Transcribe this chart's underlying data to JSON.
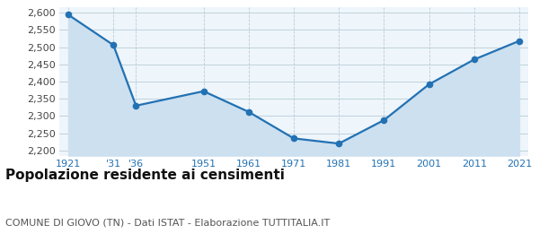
{
  "years": [
    1921,
    1931,
    1936,
    1951,
    1961,
    1971,
    1981,
    1991,
    2001,
    2011,
    2021
  ],
  "x_labels": [
    "1921",
    "'31",
    "'36",
    "1951",
    "1961",
    "1971",
    "1981",
    "1991",
    "2001",
    "2011",
    "2021"
  ],
  "values": [
    2594,
    2506,
    2330,
    2372,
    2312,
    2235,
    2220,
    2288,
    2392,
    2464,
    2518
  ],
  "ylim": [
    2185,
    2615
  ],
  "yticks": [
    2200,
    2250,
    2300,
    2350,
    2400,
    2450,
    2500,
    2550,
    2600
  ],
  "line_color": "#2271b3",
  "fill_color": "#cce0ef",
  "marker_size": 4.5,
  "line_width": 1.6,
  "background_color": "#eef5fb",
  "grid_color": "#b8cdd8",
  "title": "Popolazione residente ai censimenti",
  "subtitle": "COMUNE DI GIOVO (TN) - Dati ISTAT - Elaborazione TUTTITALIA.IT",
  "title_fontsize": 11,
  "subtitle_fontsize": 8,
  "tick_color": "#2271b3",
  "tick_fontsize": 8,
  "ytick_fontsize": 8
}
